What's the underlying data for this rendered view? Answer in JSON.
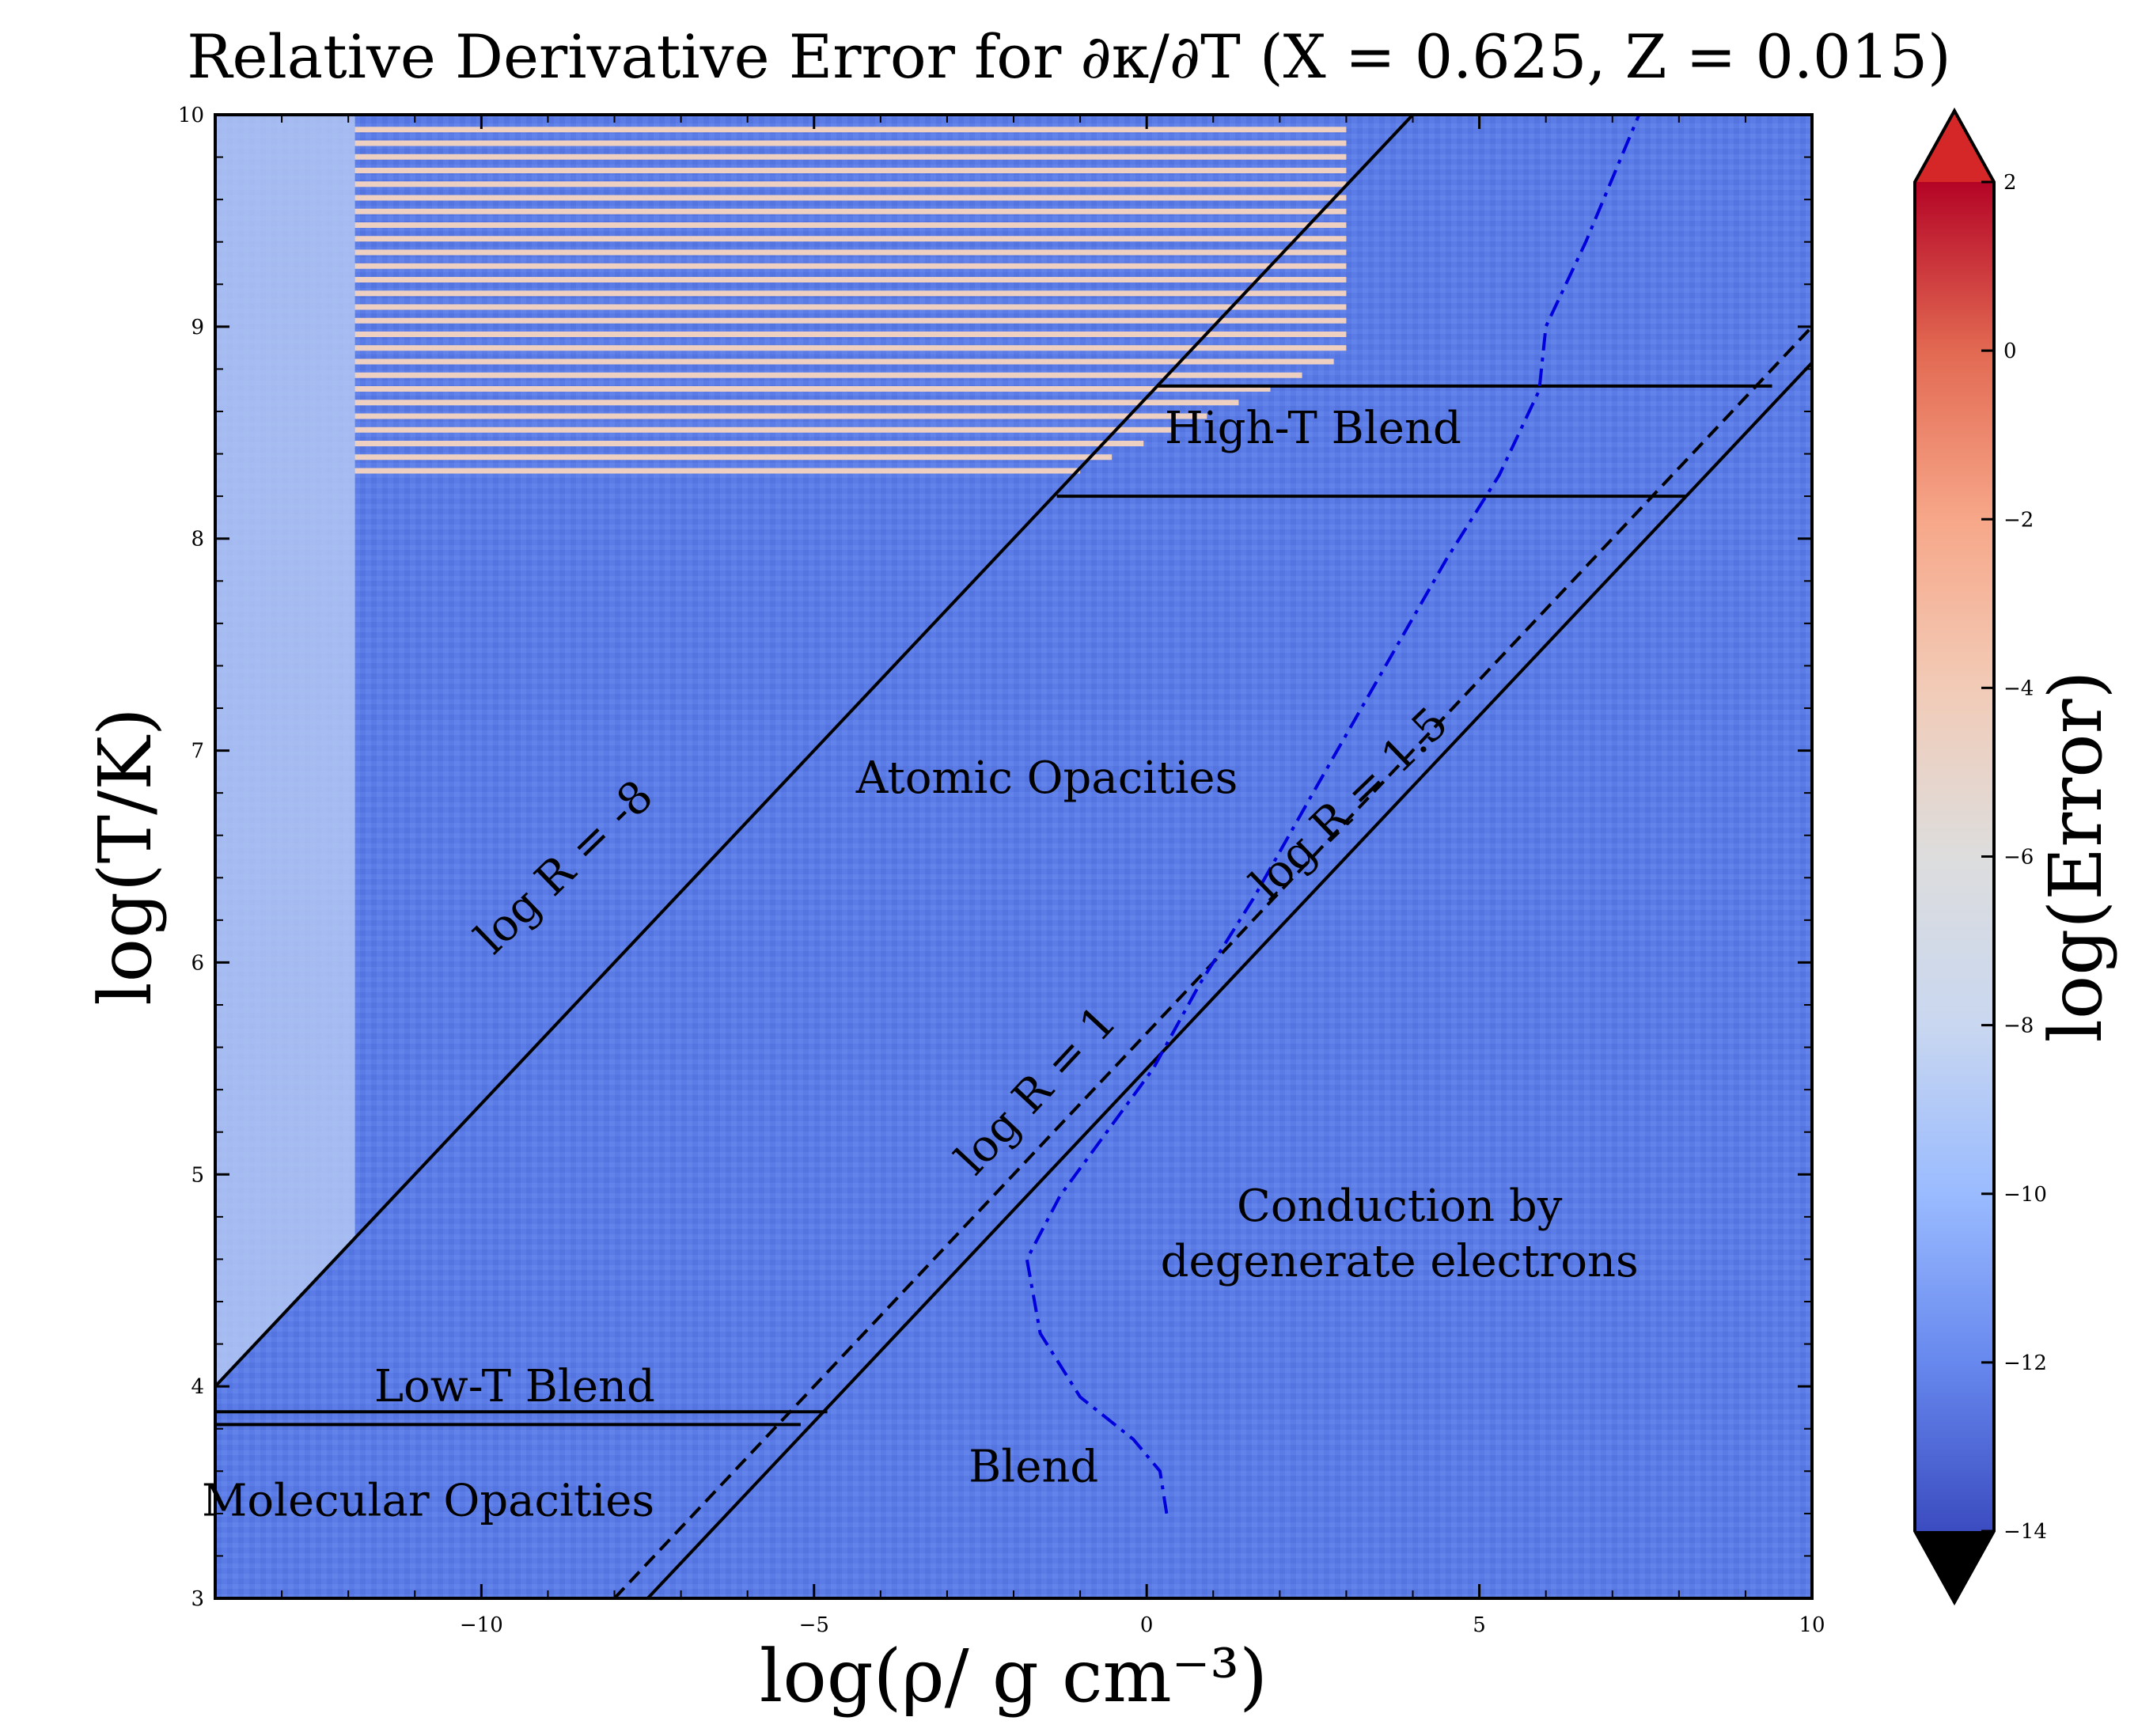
{
  "chart_data": {
    "type": "heatmap",
    "title": "Relative Derivative Error for ∂κ/∂T (X = 0.625, Z = 0.015)",
    "xlabel": "log(ρ/ g cm⁻³)",
    "ylabel": "log(T/K)",
    "xlim": [
      -14,
      10
    ],
    "ylim": [
      3,
      10
    ],
    "xticks": [
      -10,
      -5,
      0,
      5,
      10
    ],
    "xtick_labels": [
      "−10",
      "−5",
      "0",
      "5",
      "10"
    ],
    "yticks": [
      3,
      4,
      5,
      6,
      7,
      8,
      9,
      10
    ],
    "ytick_labels": [
      "3",
      "4",
      "5",
      "6",
      "7",
      "8",
      "9",
      "10"
    ],
    "colorbar": {
      "label": "log(Error)",
      "min": -14,
      "max": 2,
      "ticks": [
        2,
        0,
        -2,
        -4,
        -6,
        -8,
        -10,
        -12,
        -14
      ],
      "tick_labels": [
        "2",
        "0",
        "−2",
        "−4",
        "−6",
        "−8",
        "−10",
        "−12",
        "−14"
      ],
      "extend": "both",
      "colormap": "coolwarm",
      "stops": [
        "#3b4cc0",
        "#6788ee",
        "#9abbff",
        "#c9d7f0",
        "#dddddd",
        "#f2cbb7",
        "#f7a789",
        "#e26952",
        "#b40426"
      ],
      "under_color": "#000000",
      "over_color": "#d62728"
    },
    "background_level": -11.5,
    "regions": [
      {
        "name": "high-error-bands",
        "x_range": [
          -11.9,
          -1.0
        ],
        "y_range": [
          8.32,
          9.93
        ],
        "level": -4.5
      },
      {
        "name": "low-rho-strip",
        "x_range": [
          -14,
          -11.9
        ],
        "y_range": [
          4.0,
          10
        ],
        "level": -8.5
      }
    ],
    "lines": [
      {
        "name": "log R = -8",
        "style": "solid",
        "color": "#000000",
        "points": [
          [
            -14,
            4.0
          ],
          [
            4.0,
            10.0
          ]
        ]
      },
      {
        "name": "log R = 1",
        "style": "dashed",
        "color": "#000000",
        "points": [
          [
            -8.0,
            3.0
          ],
          [
            10.0,
            9.0
          ]
        ]
      },
      {
        "name": "log R = 1.5",
        "style": "solid",
        "color": "#000000",
        "points": [
          [
            -7.5,
            3.0
          ],
          [
            10.0,
            8.83
          ]
        ]
      },
      {
        "name": "high-T-upper",
        "style": "solid",
        "color": "#000000",
        "points": [
          [
            0.17,
            8.72
          ],
          [
            9.4,
            8.72
          ]
        ]
      },
      {
        "name": "high-T-lower",
        "style": "solid",
        "color": "#000000",
        "points": [
          [
            -1.35,
            8.2
          ],
          [
            8.1,
            8.2
          ]
        ]
      },
      {
        "name": "low-T-upper",
        "style": "solid",
        "color": "#000000",
        "points": [
          [
            -14,
            3.88
          ],
          [
            -4.8,
            3.88
          ]
        ]
      },
      {
        "name": "low-T-lower",
        "style": "solid",
        "color": "#000000",
        "points": [
          [
            -14,
            3.82
          ],
          [
            -5.2,
            3.82
          ]
        ]
      },
      {
        "name": "degeneracy-boundary",
        "style": "dashdot",
        "color": "#0000dd",
        "points": [
          [
            0.3,
            3.4
          ],
          [
            0.2,
            3.6
          ],
          [
            -0.2,
            3.75
          ],
          [
            -1.0,
            3.95
          ],
          [
            -1.6,
            4.25
          ],
          [
            -1.8,
            4.6
          ],
          [
            -1.3,
            4.9
          ],
          [
            -0.6,
            5.2
          ],
          [
            0.1,
            5.5
          ],
          [
            0.8,
            5.9
          ],
          [
            1.6,
            6.3
          ],
          [
            2.5,
            6.8
          ],
          [
            3.5,
            7.35
          ],
          [
            4.5,
            7.9
          ],
          [
            5.3,
            8.3
          ],
          [
            5.9,
            8.7
          ],
          [
            6.0,
            9.0
          ],
          [
            6.6,
            9.4
          ],
          [
            7.4,
            10.0
          ]
        ]
      }
    ],
    "annotations": [
      {
        "text": "High-T Blend",
        "x": 2.5,
        "y": 8.45,
        "rotation": 0
      },
      {
        "text": "Atomic Opacities",
        "x": -1.5,
        "y": 6.8,
        "rotation": 0
      },
      {
        "text": "Conduction by",
        "x": 3.8,
        "y": 4.78,
        "rotation": 0
      },
      {
        "text": "degenerate electrons",
        "x": 3.8,
        "y": 4.52,
        "rotation": 0
      },
      {
        "text": "Low-T Blend",
        "x": -9.5,
        "y": 3.93,
        "rotation": 0
      },
      {
        "text": "Molecular Opacities",
        "x": -10.8,
        "y": 3.39,
        "rotation": 0
      },
      {
        "text": "Blend",
        "x": -1.7,
        "y": 3.55,
        "rotation": 0
      },
      {
        "text": "log R = -8",
        "x": -8.6,
        "y": 6.4,
        "rotation": -44
      },
      {
        "text": "log R = 1",
        "x": -1.5,
        "y": 5.35,
        "rotation": -47
      },
      {
        "text": "log R = 1.5",
        "x": 3.2,
        "y": 6.7,
        "rotation": -44
      }
    ]
  }
}
